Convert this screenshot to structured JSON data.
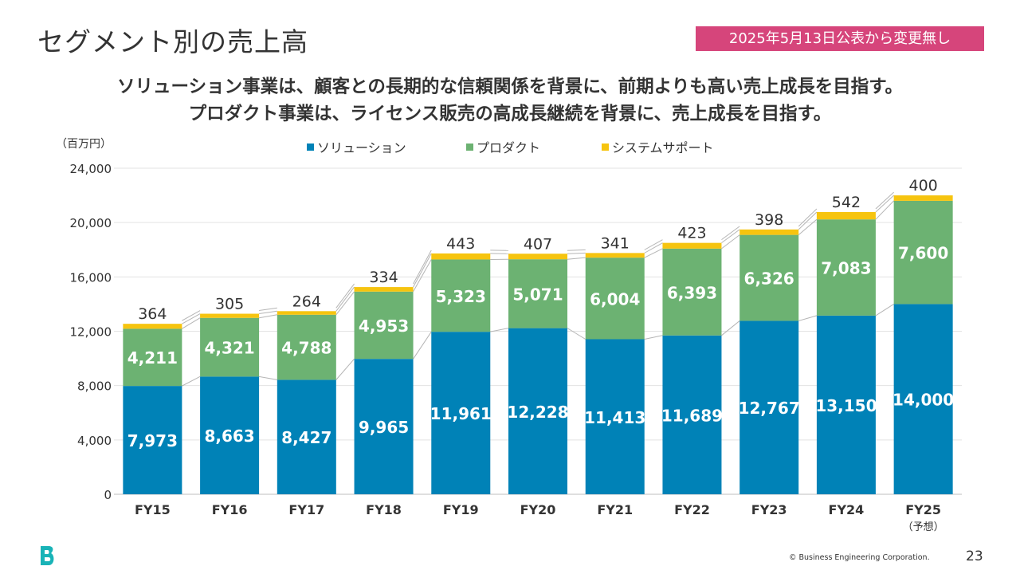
{
  "slide": {
    "title": "セグメント別の売上高",
    "badge": "2025年5月13日公表から変更無し",
    "headline_1": "ソリューション事業は、顧客との長期的な信頼関係を背景に、前期よりも高い売上成長を目指す。",
    "headline_2": "プロダクト事業は、ライセンス販売の高成長継続を背景に、売上成長を目指す。",
    "unit": "（百万円）",
    "copyright": "© Business Engineering Corporation.",
    "page_number": "23"
  },
  "colors": {
    "solution": "#0082b7",
    "product": "#6cb272",
    "support": "#f6c40f",
    "badge": "#d6457b",
    "logo": "#19b3b7"
  },
  "chart_data": {
    "type": "bar",
    "stacked": true,
    "categories": [
      "FY15",
      "FY16",
      "FY17",
      "FY18",
      "FY19",
      "FY20",
      "FY21",
      "FY22",
      "FY23",
      "FY24",
      "FY25"
    ],
    "category_sublabels": [
      "",
      "",
      "",
      "",
      "",
      "",
      "",
      "",
      "",
      "",
      "（予想）"
    ],
    "series": [
      {
        "name": "ソリューション",
        "values": [
          7973,
          8663,
          8427,
          9965,
          11961,
          12228,
          11413,
          11689,
          12767,
          13150,
          14000
        ]
      },
      {
        "name": "プロダクト",
        "values": [
          4211,
          4321,
          4788,
          4953,
          5323,
          5071,
          6004,
          6393,
          6326,
          7083,
          7600
        ]
      },
      {
        "name": "システムサポート",
        "values": [
          364,
          305,
          264,
          334,
          443,
          407,
          341,
          423,
          398,
          542,
          400
        ]
      }
    ],
    "y_ticks": [
      "0",
      "4,000",
      "8,000",
      "12,000",
      "16,000",
      "20,000",
      "24,000"
    ],
    "ylim": [
      0,
      24000
    ],
    "grid": true,
    "legend": "top",
    "ylabel": "（百万円）"
  }
}
